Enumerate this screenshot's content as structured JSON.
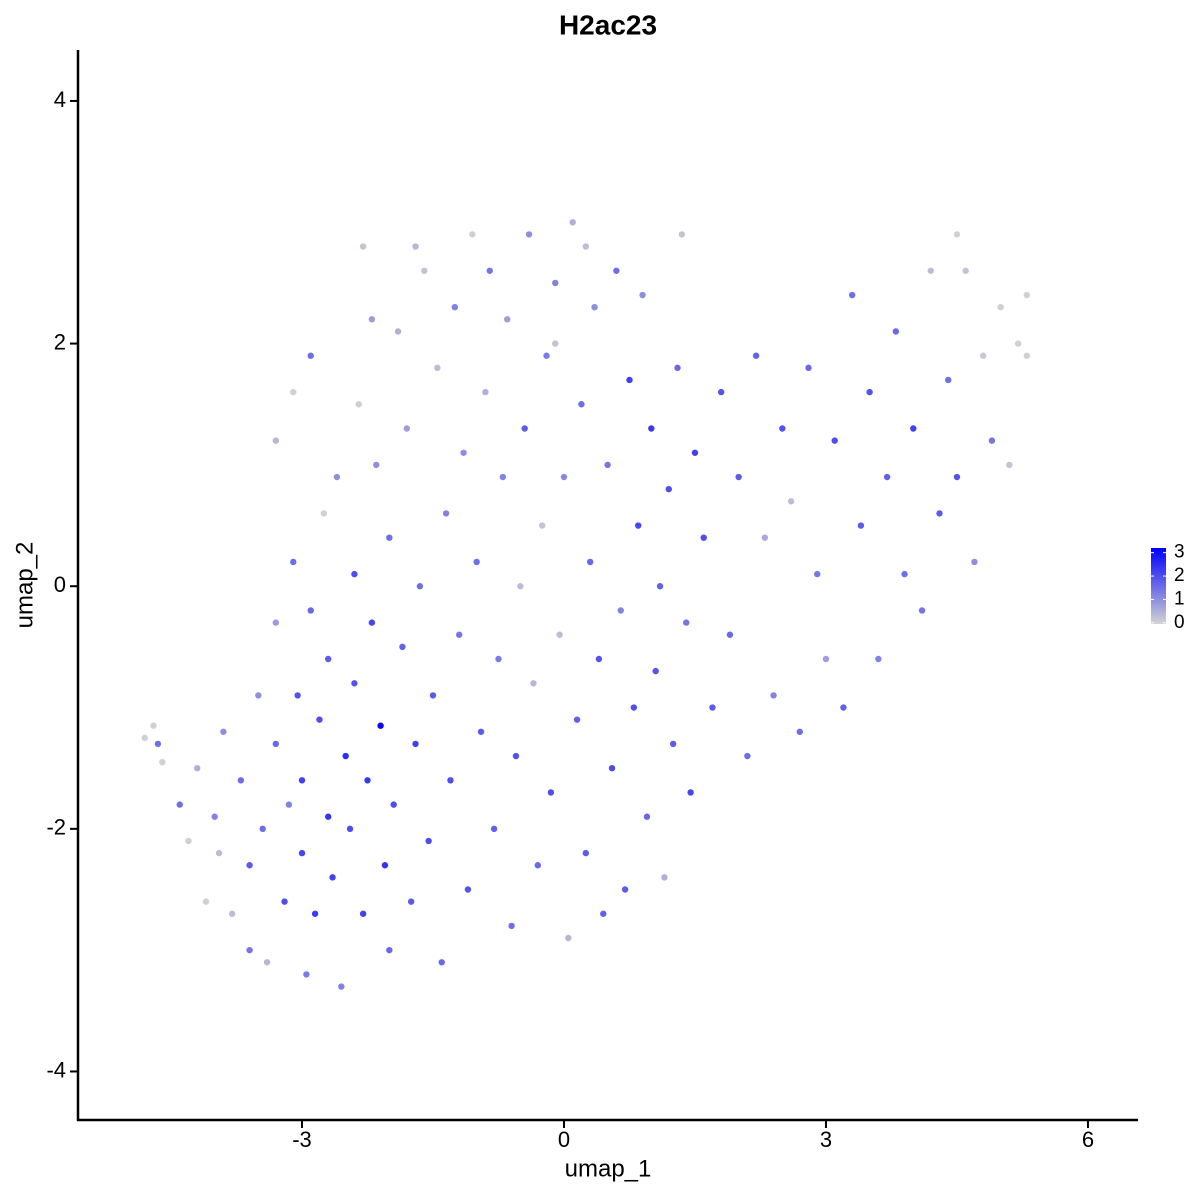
{
  "chart_data": {
    "type": "scatter",
    "title": "H2ac23",
    "x_label": "umap_1",
    "y_label": "umap_2",
    "x": [
      -4.8,
      -4.7,
      -4.65,
      -4.6,
      -4.4,
      -4.3,
      -4.2,
      -4.1,
      -4.0,
      -3.95,
      -3.9,
      -3.8,
      -3.7,
      -3.6,
      -3.6,
      -3.5,
      -3.45,
      -3.4,
      -3.3,
      -3.3,
      -3.2,
      -3.15,
      -3.1,
      -3.05,
      -3.0,
      -3.0,
      -2.95,
      -2.9,
      -2.85,
      -2.8,
      -2.75,
      -2.7,
      -2.7,
      -2.65,
      -2.6,
      -2.55,
      -2.5,
      -2.45,
      -2.4,
      -2.4,
      -2.35,
      -2.3,
      -2.25,
      -2.2,
      -2.15,
      -2.1,
      -2.05,
      -2.0,
      -2.0,
      -1.95,
      -1.9,
      -1.85,
      -1.8,
      -1.75,
      -1.7,
      -1.65,
      -1.6,
      -1.55,
      -1.5,
      -1.45,
      -1.4,
      -1.35,
      -1.3,
      -1.25,
      -1.2,
      -1.15,
      -1.1,
      -1.05,
      -1.0,
      -0.95,
      -0.9,
      -0.85,
      -0.8,
      -0.75,
      -0.7,
      -0.65,
      -0.6,
      -0.55,
      -0.5,
      -0.45,
      -0.4,
      -0.35,
      -0.3,
      -0.25,
      -0.2,
      -0.15,
      -0.1,
      -0.05,
      0.0,
      0.05,
      0.1,
      0.15,
      0.2,
      0.25,
      0.3,
      0.35,
      0.4,
      0.45,
      0.5,
      0.55,
      0.6,
      0.65,
      0.7,
      0.75,
      0.8,
      0.85,
      0.9,
      0.95,
      1.0,
      1.05,
      1.1,
      1.15,
      1.2,
      1.25,
      1.3,
      1.35,
      1.4,
      1.45,
      1.5,
      1.6,
      1.7,
      1.8,
      1.9,
      2.0,
      2.1,
      2.2,
      2.3,
      2.4,
      2.5,
      2.6,
      2.7,
      2.8,
      2.9,
      3.0,
      3.1,
      3.2,
      3.3,
      3.4,
      3.5,
      3.6,
      3.7,
      3.8,
      3.9,
      4.0,
      4.1,
      4.2,
      4.3,
      4.4,
      4.5,
      4.5,
      4.6,
      4.7,
      4.8,
      4.9,
      5.0,
      5.1,
      5.2,
      5.3,
      5.3,
      -2.3,
      -2.2,
      -2.9,
      -3.3,
      -3.1,
      -1.7,
      0.25,
      -0.1
    ],
    "y": [
      -1.25,
      -1.15,
      -1.3,
      -1.45,
      -1.8,
      -2.1,
      -1.5,
      -2.6,
      -1.9,
      -2.2,
      -1.2,
      -2.7,
      -1.6,
      -2.3,
      -3.0,
      -0.9,
      -2.0,
      -3.1,
      -1.3,
      -0.3,
      -2.6,
      -1.8,
      0.2,
      -0.9,
      -2.2,
      -1.6,
      -3.2,
      -0.2,
      -2.7,
      -1.1,
      0.6,
      -1.9,
      -0.6,
      -2.4,
      0.9,
      -3.3,
      -1.4,
      -2.0,
      0.1,
      -0.8,
      1.5,
      -2.7,
      -1.6,
      -0.3,
      1.0,
      -1.15,
      -2.3,
      -3.0,
      0.4,
      -1.8,
      2.1,
      -0.5,
      1.3,
      -2.6,
      -1.3,
      0.0,
      2.6,
      -2.1,
      -0.9,
      1.8,
      -3.1,
      0.6,
      -1.6,
      2.3,
      -0.4,
      1.1,
      -2.5,
      2.9,
      0.2,
      -1.2,
      1.6,
      2.6,
      -2.0,
      -0.6,
      0.9,
      2.2,
      -2.8,
      -1.4,
      0.0,
      1.3,
      2.9,
      -0.8,
      -2.3,
      0.5,
      1.9,
      -1.7,
      2.5,
      -0.4,
      0.9,
      -2.9,
      3.0,
      -1.1,
      1.5,
      -2.2,
      0.2,
      2.3,
      -0.6,
      -2.7,
      1.0,
      -1.5,
      2.6,
      -0.2,
      -2.5,
      1.7,
      -1.0,
      0.5,
      2.4,
      -1.9,
      1.3,
      -0.7,
      0.0,
      -2.4,
      0.8,
      -1.3,
      1.8,
      2.9,
      -0.3,
      -1.7,
      1.1,
      0.4,
      -1.0,
      1.6,
      -0.4,
      0.9,
      -1.4,
      1.9,
      0.4,
      -0.9,
      1.3,
      0.7,
      -1.2,
      1.8,
      0.1,
      -0.6,
      1.2,
      -1.0,
      2.4,
      0.5,
      1.6,
      -0.6,
      0.9,
      2.1,
      0.1,
      1.3,
      -0.2,
      2.6,
      0.6,
      1.7,
      2.9,
      0.9,
      2.6,
      0.2,
      1.9,
      1.2,
      2.3,
      1.0,
      2.0,
      2.4,
      1.9,
      2.8,
      2.2,
      1.9,
      1.2,
      1.6,
      2.8,
      2.8,
      2.0
    ],
    "values": [
      0.0,
      0.0,
      1.5,
      0.0,
      1.5,
      0.0,
      0.5,
      0.0,
      1.2,
      0.3,
      1.0,
      0.3,
      1.5,
      1.8,
      1.4,
      1.0,
      1.5,
      0.4,
      1.6,
      0.8,
      2.0,
      1.2,
      1.5,
      1.9,
      2.1,
      2.2,
      1.3,
      1.6,
      2.3,
      2.0,
      0.0,
      2.4,
      1.8,
      2.2,
      1.0,
      1.2,
      2.5,
      2.0,
      2.0,
      1.9,
      0.0,
      2.2,
      2.3,
      2.1,
      1.0,
      3.1,
      2.4,
      1.6,
      1.5,
      2.0,
      0.5,
      1.7,
      0.8,
      1.8,
      2.2,
      1.5,
      0.2,
      2.0,
      1.8,
      0.3,
      1.6,
      1.2,
      2.0,
      1.2,
      1.4,
      1.0,
      1.9,
      0.0,
      1.5,
      1.8,
      0.5,
      1.4,
      1.7,
      1.3,
      1.2,
      0.8,
      1.5,
      1.9,
      0.3,
      1.8,
      1.0,
      0.4,
      1.6,
      0.2,
      1.3,
      2.0,
      1.2,
      0.3,
      1.1,
      0.4,
      0.5,
      1.7,
      1.5,
      1.8,
      1.6,
      1.0,
      1.9,
      1.7,
      1.4,
      2.0,
      1.5,
      1.2,
      1.8,
      2.2,
      2.0,
      2.1,
      1.0,
      1.6,
      2.3,
      1.9,
      1.7,
      0.5,
      2.0,
      1.8,
      1.6,
      0.2,
      1.4,
      2.1,
      2.2,
      2.0,
      1.8,
      1.9,
      1.6,
      1.8,
      1.5,
      1.7,
      0.6,
      1.2,
      1.9,
      0.3,
      1.5,
      1.6,
      1.4,
      0.8,
      2.0,
      1.7,
      1.5,
      1.8,
      1.9,
      1.2,
      1.7,
      1.6,
      1.5,
      2.2,
      1.4,
      0.3,
      1.8,
      1.5,
      0.0,
      1.9,
      0.2,
      1.0,
      0.1,
      1.4,
      0.0,
      0.2,
      0.0,
      0.0,
      0.0,
      0.2,
      0.8,
      1.5,
      0.4,
      0.0,
      0.4,
      0.3,
      0.2
    ],
    "xlim": [
      -5.565,
      6.573
    ],
    "ylim": [
      -4.4,
      4.42
    ],
    "xticks": [
      -3,
      0,
      3,
      6
    ],
    "yticks": [
      -4,
      -2,
      0,
      2,
      4
    ],
    "color_low": "#d3d3d3",
    "color_high": "#0000ff",
    "color_lim": [
      -0.05,
      3.2
    ],
    "color_ticks": [
      0,
      1,
      2,
      3
    ]
  }
}
